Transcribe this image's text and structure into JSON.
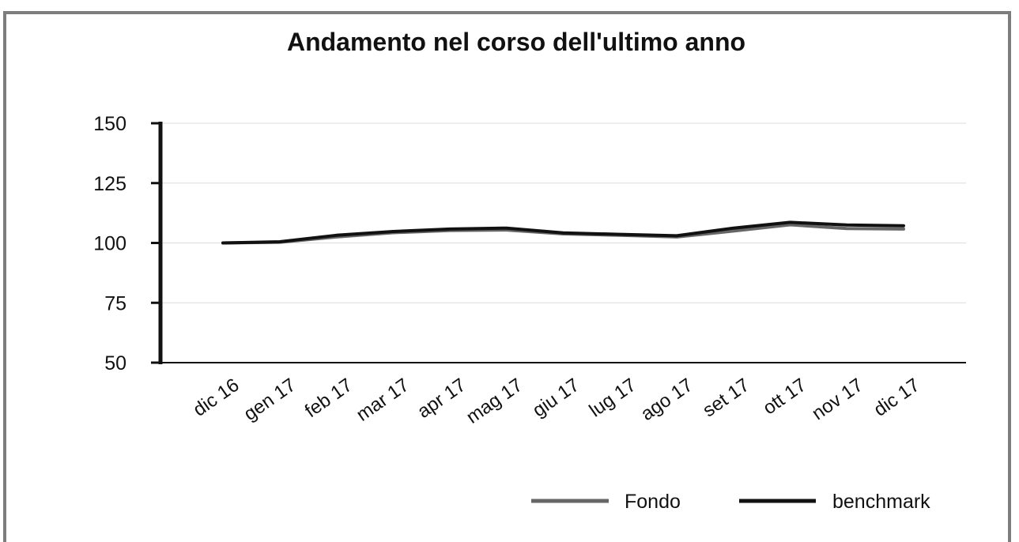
{
  "chart_data": {
    "type": "line",
    "title": "Andamento nel corso dell'ultimo anno",
    "xlabel": "",
    "ylabel": "",
    "categories": [
      "dic 16",
      "gen 17",
      "feb 17",
      "mar 17",
      "apr 17",
      "mag 17",
      "giu 17",
      "lug 17",
      "ago 17",
      "set 17",
      "ott 17",
      "nov 17",
      "dic 17"
    ],
    "yticks": [
      "150",
      "125",
      "100",
      "75",
      "50"
    ],
    "ylim": [
      50,
      150
    ],
    "grid": true,
    "legend_position": "bottom-right",
    "series": [
      {
        "name": "Fondo",
        "color": "#666666",
        "values": [
          100,
          100.3,
          102.5,
          104.3,
          105.2,
          105.4,
          103.8,
          103.2,
          102.5,
          105.0,
          107.6,
          106.0,
          105.8
        ]
      },
      {
        "name": "benchmark",
        "color": "#111111",
        "values": [
          100,
          100.5,
          103.2,
          104.8,
          105.8,
          106.2,
          104.2,
          103.6,
          103.0,
          106.2,
          108.6,
          107.5,
          107.2
        ]
      }
    ]
  }
}
